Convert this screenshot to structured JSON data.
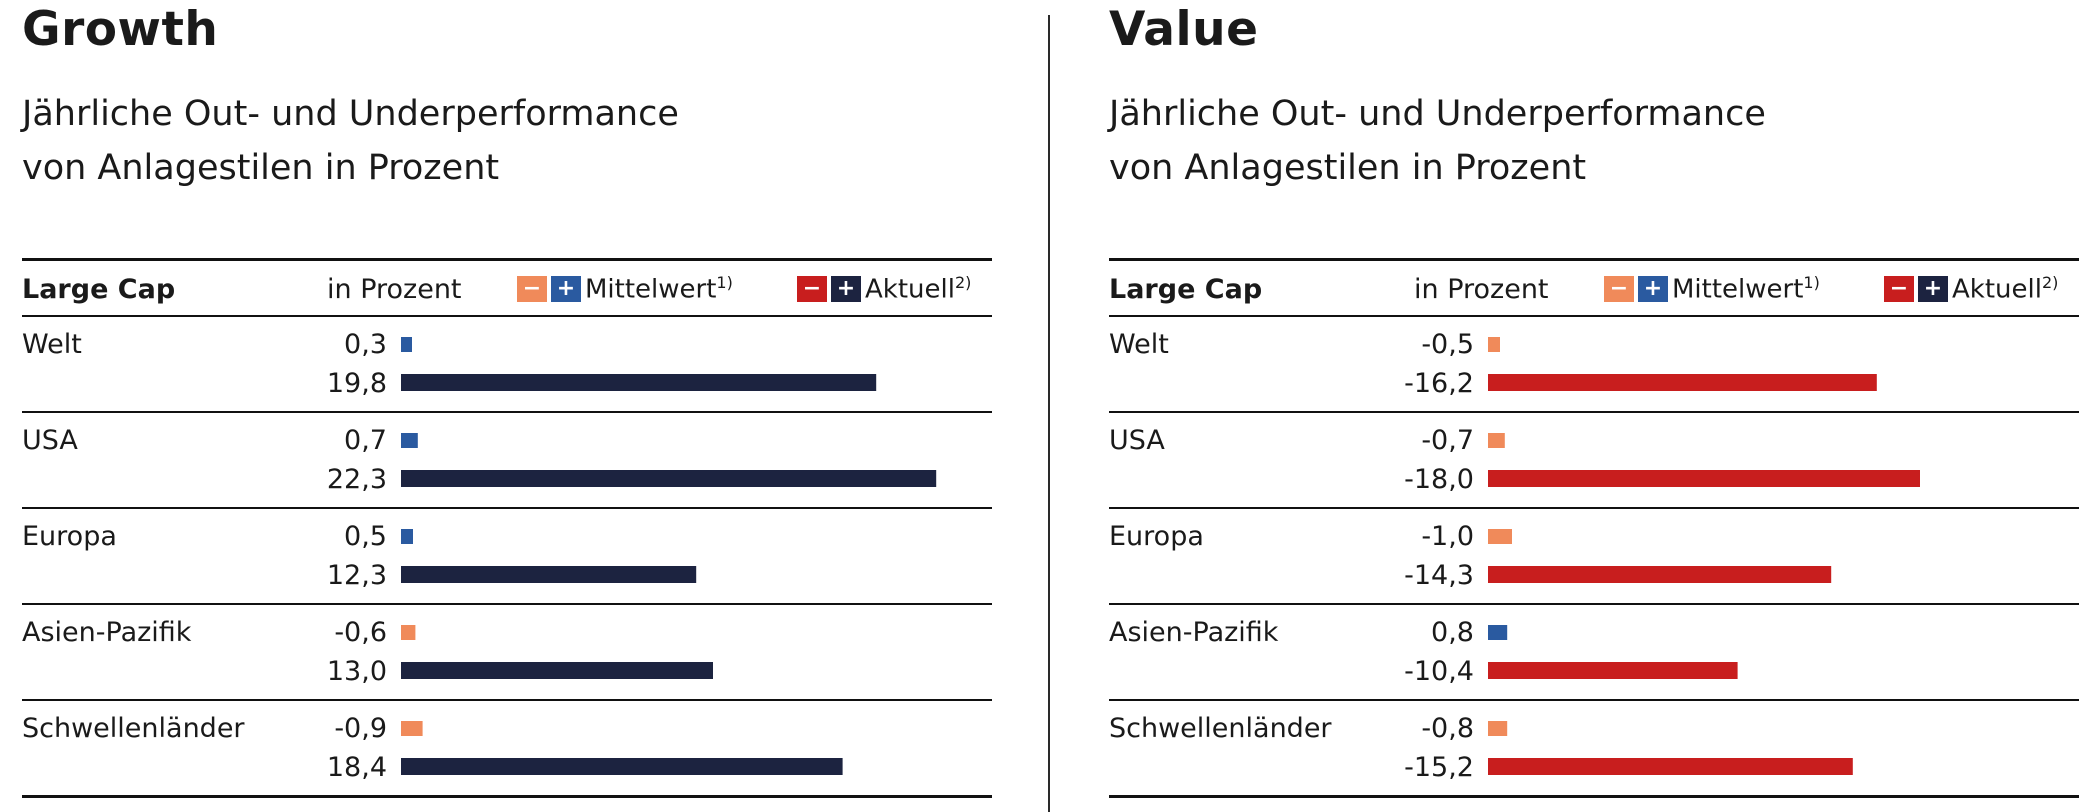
{
  "chart_data": [
    {
      "type": "bar",
      "title": "Growth",
      "subtitle_lines": [
        "Jährliche Out- und Underperformance",
        "von Anlagestilen in Prozent"
      ],
      "row_header": "Large Cap",
      "unit_header": "in Prozent",
      "legend": [
        {
          "label": "Mittelwert",
          "sup": "1)",
          "neg_color": "#f08a5a",
          "pos_color": "#2a5aa0"
        },
        {
          "label": "Aktuell",
          "sup": "2)",
          "neg_color": "#c81e1e",
          "pos_color": "#1c2340"
        }
      ],
      "categories": [
        "Welt",
        "USA",
        "Europa",
        "Asien-Pazifik",
        "Schwellenländer"
      ],
      "series": [
        {
          "name": "Mittelwert",
          "values": [
            0.3,
            0.7,
            0.5,
            -0.6,
            -0.9
          ],
          "labels": [
            "0,3",
            "0,7",
            "0,5",
            "-0,6",
            "-0,9"
          ]
        },
        {
          "name": "Aktuell",
          "values": [
            19.8,
            22.3,
            12.3,
            13.0,
            18.4
          ],
          "labels": [
            "19,8",
            "22,3",
            "12,3",
            "13,0",
            "18,4"
          ]
        }
      ]
    },
    {
      "type": "bar",
      "title": "Value",
      "subtitle_lines": [
        "Jährliche Out- und Underperformance",
        "von Anlagestilen in Prozent"
      ],
      "row_header": "Large Cap",
      "unit_header": "in Prozent",
      "legend": [
        {
          "label": "Mittelwert",
          "sup": "1)",
          "neg_color": "#f08a5a",
          "pos_color": "#2a5aa0"
        },
        {
          "label": "Aktuell",
          "sup": "2)",
          "neg_color": "#c81e1e",
          "pos_color": "#1c2340"
        }
      ],
      "categories": [
        "Welt",
        "USA",
        "Europa",
        "Asien-Pazifik",
        "Schwellenländer"
      ],
      "series": [
        {
          "name": "Mittelwert",
          "values": [
            -0.5,
            -0.7,
            -1.0,
            0.8,
            -0.8
          ],
          "labels": [
            "-0,5",
            "-0,7",
            "-1,0",
            "0,8",
            "-0,8"
          ]
        },
        {
          "name": "Aktuell",
          "values": [
            -16.2,
            -18.0,
            -14.3,
            -10.4,
            -15.2
          ],
          "labels": [
            "-16,2",
            "-18,0",
            "-14,3",
            "-10,4",
            "-15,2"
          ]
        }
      ]
    }
  ]
}
